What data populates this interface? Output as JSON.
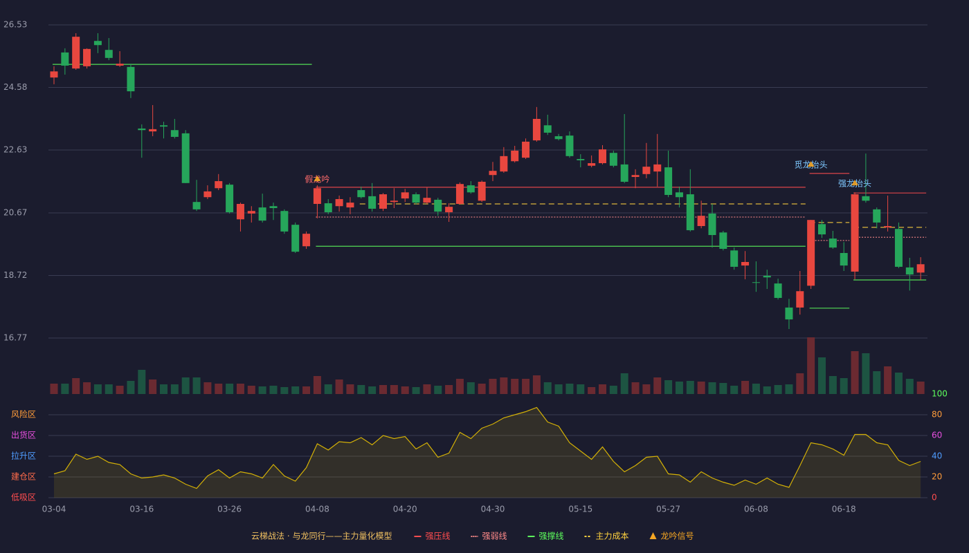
{
  "chart_data": {
    "type": "candlestick",
    "categories": [
      "03-04",
      null,
      null,
      null,
      null,
      null,
      null,
      null,
      "03-16",
      null,
      null,
      null,
      null,
      null,
      null,
      null,
      "03-26",
      null,
      null,
      null,
      null,
      null,
      null,
      null,
      "04-08",
      null,
      null,
      null,
      null,
      null,
      null,
      null,
      "04-20",
      null,
      null,
      null,
      null,
      null,
      null,
      null,
      "04-30",
      null,
      null,
      null,
      null,
      null,
      null,
      null,
      "05-15",
      null,
      null,
      null,
      null,
      null,
      null,
      null,
      "05-27",
      null,
      null,
      null,
      null,
      null,
      null,
      null,
      "06-08",
      null,
      null,
      null,
      null,
      null,
      null,
      null,
      "06-18",
      null,
      null,
      null,
      null,
      null,
      null,
      null
    ],
    "open": [
      24.89,
      25.67,
      25.17,
      25.24,
      26.03,
      25.75,
      25.26,
      25.22,
      23.3,
      23.21,
      23.4,
      23.25,
      23.15,
      21.01,
      21.16,
      21.44,
      21.55,
      20.47,
      20.65,
      20.84,
      20.88,
      20.73,
      20.3,
      19.63,
      20.95,
      20.97,
      20.88,
      20.84,
      21.38,
      21.19,
      20.8,
      21.01,
      21.12,
      21.25,
      20.99,
      21.08,
      20.69,
      20.95,
      21.53,
      21.05,
      21.85,
      21.96,
      22.28,
      22.39,
      22.93,
      23.4,
      23.06,
      23.08,
      22.35,
      22.14,
      22.22,
      22.54,
      22.18,
      21.79,
      21.88,
      21.96,
      22.09,
      21.31,
      21.25,
      20.26,
      20.65,
      20.06,
      19.5,
      19.03,
      18.51,
      18.71,
      18.47,
      17.72,
      17.72,
      18.4,
      20.32,
      19.87,
      19.42,
      18.84,
      21.19,
      20.78,
      20.22,
      20.17,
      18.97,
      18.81
    ],
    "close": [
      25.08,
      25.26,
      26.16,
      25.78,
      25.9,
      25.5,
      25.32,
      24.46,
      23.25,
      23.28,
      23.36,
      23.04,
      21.6,
      20.78,
      21.34,
      21.66,
      20.69,
      20.95,
      20.73,
      20.43,
      20.82,
      20.09,
      19.46,
      20.02,
      21.44,
      20.69,
      21.1,
      20.99,
      21.16,
      20.8,
      21.25,
      21.05,
      21.31,
      20.99,
      21.14,
      20.71,
      20.86,
      21.57,
      21.31,
      21.64,
      21.98,
      22.44,
      22.61,
      22.89,
      23.6,
      23.17,
      22.97,
      22.44,
      22.31,
      22.22,
      22.65,
      22.14,
      21.64,
      21.85,
      22.11,
      22.18,
      21.23,
      21.16,
      20.13,
      20.58,
      19.98,
      19.55,
      18.99,
      19.14,
      18.49,
      18.66,
      18.02,
      17.35,
      18.23,
      20.45,
      20.0,
      19.59,
      19.03,
      21.25,
      21.05,
      20.37,
      20.26,
      18.99,
      18.75,
      19.07
    ],
    "high": [
      25.24,
      25.8,
      26.27,
      25.8,
      26.27,
      26.12,
      25.71,
      25.32,
      23.43,
      24.03,
      23.51,
      23.6,
      23.25,
      21.7,
      21.53,
      21.88,
      21.6,
      20.99,
      20.88,
      21.27,
      20.99,
      20.78,
      20.37,
      20.09,
      21.53,
      21.1,
      21.21,
      21.16,
      21.49,
      21.6,
      21.29,
      21.44,
      21.42,
      21.31,
      21.46,
      21.14,
      20.97,
      21.62,
      21.66,
      21.68,
      22.26,
      22.72,
      22.76,
      22.99,
      23.97,
      23.73,
      23.13,
      23.21,
      22.5,
      22.46,
      22.78,
      22.61,
      23.75,
      22.03,
      22.85,
      23.13,
      22.61,
      21.49,
      22.03,
      21.05,
      20.95,
      20.11,
      19.59,
      19.48,
      19.16,
      18.9,
      18.62,
      17.99,
      18.86,
      20.45,
      20.45,
      20.11,
      19.76,
      21.31,
      22.52,
      20.84,
      21.21,
      20.37,
      19.27,
      19.29
    ],
    "low": [
      24.68,
      24.98,
      25.13,
      25.17,
      25.65,
      25.43,
      25.22,
      24.25,
      22.39,
      23.06,
      22.99,
      22.99,
      21.6,
      20.73,
      21.1,
      21.38,
      20.65,
      20.09,
      20.37,
      20.37,
      20.45,
      20.02,
      19.42,
      19.55,
      20.5,
      20.63,
      20.71,
      20.63,
      21.12,
      20.71,
      20.73,
      20.82,
      21.01,
      20.93,
      20.95,
      20.58,
      20.39,
      20.93,
      21.27,
      21.01,
      21.66,
      21.92,
      22.24,
      22.35,
      22.89,
      23.1,
      22.93,
      22.39,
      22.09,
      22.09,
      22.18,
      22.09,
      21.6,
      21.44,
      21.75,
      21.49,
      21.16,
      20.84,
      20.09,
      20.19,
      19.59,
      19.5,
      18.9,
      18.6,
      18.21,
      18.3,
      17.97,
      17.05,
      17.5,
      18.3,
      19.89,
      19.55,
      18.86,
      18.6,
      20.99,
      20.19,
      20.09,
      18.95,
      18.25,
      18.58
    ],
    "up_color": "#e8473f",
    "down_color": "#26a65b",
    "ylim": [
      16.77,
      26.53
    ],
    "yticks": [
      16.77,
      18.72,
      20.67,
      22.63,
      24.58,
      26.53
    ],
    "grid": true,
    "volume": [
      15,
      15,
      23,
      17,
      14,
      14,
      12,
      19,
      35,
      21,
      14,
      14,
      24,
      24,
      17,
      15,
      15,
      15,
      12,
      11,
      12,
      10,
      11,
      11,
      26,
      14,
      21,
      14,
      13,
      11,
      13,
      13,
      11,
      10,
      14,
      12,
      13,
      22,
      17,
      15,
      22,
      24,
      22,
      22,
      27,
      17,
      14,
      15,
      14,
      10,
      14,
      12,
      30,
      17,
      14,
      24,
      20,
      18,
      19,
      18,
      17,
      16,
      12,
      19,
      15,
      11,
      13,
      14,
      30,
      82,
      53,
      26,
      23,
      62,
      59,
      33,
      40,
      31,
      22,
      18
    ],
    "volume_up_color": "#6b2a31",
    "volume_down_color": "#1d5442",
    "levels": [
      {
        "kind": 2,
        "from": 0,
        "to": 23,
        "value": 25.3
      },
      {
        "kind": 0,
        "from": 24,
        "to": 68,
        "value": 21.47
      },
      {
        "kind": 1,
        "from": 24,
        "to": 68,
        "value": 20.54
      },
      {
        "kind": 3,
        "from": 28,
        "to": 68,
        "value": 20.95
      },
      {
        "kind": 2,
        "from": 24,
        "to": 68,
        "value": 19.63
      },
      {
        "kind": 0,
        "from": 69,
        "to": 72,
        "value": 21.9
      },
      {
        "kind": 1,
        "from": 69,
        "to": 72,
        "value": 19.81
      },
      {
        "kind": 3,
        "from": 69,
        "to": 72,
        "value": 20.37
      },
      {
        "kind": 2,
        "from": 69,
        "to": 72,
        "value": 17.7
      },
      {
        "kind": 0,
        "from": 73,
        "to": 79,
        "value": 21.29
      },
      {
        "kind": 3,
        "from": 73,
        "to": 79,
        "value": 20.22
      },
      {
        "kind": 1,
        "from": 73,
        "to": 79,
        "value": 19.91
      },
      {
        "kind": 2,
        "from": 73,
        "to": 79,
        "value": 18.58
      }
    ],
    "signals": [
      {
        "label": "假龙吟",
        "index": 24,
        "value": 21.66,
        "color": "#ff6b6b"
      },
      {
        "label": "觅龙抬头",
        "index": 69,
        "value": 22.11,
        "color": "#7ec8ff"
      },
      {
        "label": "强龙抬头",
        "index": 73,
        "value": 21.53,
        "color": "#7ec8ff"
      }
    ],
    "indicator": {
      "values": [
        23,
        26,
        42,
        37,
        40,
        34,
        32,
        23,
        19,
        20,
        22,
        19,
        13,
        9,
        21,
        27,
        19,
        25,
        23,
        19,
        32,
        21,
        16,
        29,
        52,
        46,
        54,
        53,
        58,
        51,
        60,
        57,
        59,
        47,
        53,
        39,
        43,
        63,
        57,
        67,
        71,
        77,
        80,
        83,
        87,
        73,
        69,
        53,
        45,
        37,
        49,
        35,
        25,
        31,
        39,
        40,
        23,
        22,
        15,
        25,
        19,
        15,
        12,
        17,
        13,
        19,
        13,
        10,
        31,
        53,
        51,
        47,
        41,
        61,
        61,
        53,
        51,
        36,
        31,
        35
      ],
      "color": "#d4b106",
      "ylim": [
        0,
        100
      ],
      "yticks": [
        0,
        20,
        40,
        60,
        80,
        100
      ],
      "tick_colors": [
        "#ff4d4f",
        "#ff9c3a",
        "#4f9cff",
        "#e84fe0",
        "#ff9c3a",
        "#5dff5d"
      ],
      "zones": [
        {
          "label": "低吸区",
          "value": 0,
          "color": "#ff4d4f"
        },
        {
          "label": "建仓区",
          "value": 20,
          "color": "#ff6b4a"
        },
        {
          "label": "拉升区",
          "value": 40,
          "color": "#4f9cff"
        },
        {
          "label": "出货区",
          "value": 60,
          "color": "#e84fe0"
        },
        {
          "label": "风险区",
          "value": 80,
          "color": "#ff9c3a"
        }
      ]
    },
    "legend_title": "云梯战法 · 与龙同行——主力量化模型",
    "legend_title_color": "#f0c060",
    "legend": [
      {
        "name": "强压线",
        "color": "#ff4d4f",
        "style": "solid"
      },
      {
        "name": "强弱线",
        "color": "#ff8a8a",
        "style": "dotted"
      },
      {
        "name": "强撑线",
        "color": "#5dff5d",
        "style": "solid"
      },
      {
        "name": "主力成本",
        "color": "#ffd23f",
        "style": "dashed"
      },
      {
        "name": "龙吟信号",
        "color": "#f5a623",
        "style": "triangle"
      }
    ]
  }
}
